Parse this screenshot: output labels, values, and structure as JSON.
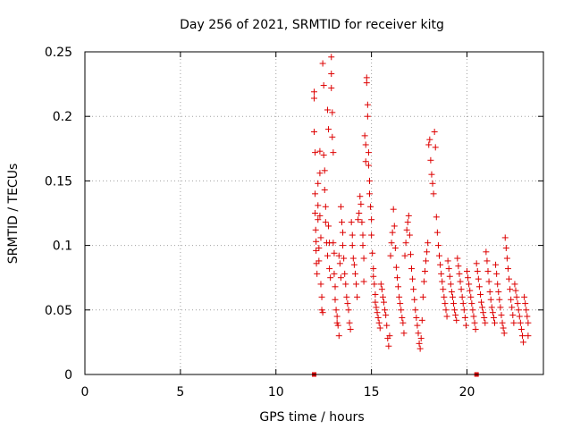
{
  "chart_data": {
    "type": "scatter",
    "title": "Day 256 of 2021, SRMTID for receiver kitg",
    "xlabel": "GPS time / hours",
    "ylabel": "SRMTID / TECUs",
    "xlim": [
      0,
      24
    ],
    "ylim": [
      0,
      0.25
    ],
    "xticks": [
      0,
      5,
      10,
      15,
      20
    ],
    "xtick_labels": [
      "0",
      "5",
      "10",
      "15",
      "20"
    ],
    "yticks": [
      0,
      0.05,
      0.1,
      0.15,
      0.2,
      0.25
    ],
    "ytick_labels": [
      "0",
      "0.05",
      "0.1",
      "0.15",
      "0.2",
      "0.25"
    ],
    "grid": true,
    "marker": "+",
    "color": "#dd0000",
    "axis_markers_x": [
      12.0,
      20.5
    ],
    "series": [
      {
        "name": "SRMTID",
        "points": [
          [
            12.0,
            0.219
          ],
          [
            12.0,
            0.214
          ],
          [
            12.0,
            0.188
          ],
          [
            12.05,
            0.172
          ],
          [
            12.05,
            0.14
          ],
          [
            12.05,
            0.125
          ],
          [
            12.08,
            0.112
          ],
          [
            12.1,
            0.103
          ],
          [
            12.1,
            0.096
          ],
          [
            12.12,
            0.086
          ],
          [
            12.15,
            0.078
          ],
          [
            12.2,
            0.148
          ],
          [
            12.2,
            0.131
          ],
          [
            12.2,
            0.12
          ],
          [
            12.25,
            0.098
          ],
          [
            12.25,
            0.088
          ],
          [
            12.3,
            0.173
          ],
          [
            12.3,
            0.156
          ],
          [
            12.3,
            0.123
          ],
          [
            12.35,
            0.106
          ],
          [
            12.35,
            0.07
          ],
          [
            12.4,
            0.06
          ],
          [
            12.4,
            0.05
          ],
          [
            12.45,
            0.048
          ],
          [
            12.45,
            0.241
          ],
          [
            12.5,
            0.224
          ],
          [
            12.5,
            0.17
          ],
          [
            12.55,
            0.158
          ],
          [
            12.55,
            0.143
          ],
          [
            12.6,
            0.13
          ],
          [
            12.6,
            0.118
          ],
          [
            12.65,
            0.102
          ],
          [
            12.7,
            0.092
          ],
          [
            12.7,
            0.205
          ],
          [
            12.75,
            0.19
          ],
          [
            12.75,
            0.115
          ],
          [
            12.8,
            0.102
          ],
          [
            12.8,
            0.082
          ],
          [
            12.85,
            0.075
          ],
          [
            12.9,
            0.246
          ],
          [
            12.9,
            0.233
          ],
          [
            12.9,
            0.222
          ],
          [
            12.95,
            0.203
          ],
          [
            12.95,
            0.184
          ],
          [
            13.0,
            0.172
          ],
          [
            13.0,
            0.102
          ],
          [
            13.05,
            0.094
          ],
          [
            13.05,
            0.078
          ],
          [
            13.1,
            0.068
          ],
          [
            13.1,
            0.058
          ],
          [
            13.15,
            0.05
          ],
          [
            13.2,
            0.045
          ],
          [
            13.2,
            0.04
          ],
          [
            13.25,
            0.038
          ],
          [
            13.3,
            0.03
          ],
          [
            13.3,
            0.092
          ],
          [
            13.35,
            0.086
          ],
          [
            13.4,
            0.075
          ],
          [
            13.4,
            0.13
          ],
          [
            13.45,
            0.118
          ],
          [
            13.5,
            0.11
          ],
          [
            13.5,
            0.1
          ],
          [
            13.55,
            0.09
          ],
          [
            13.6,
            0.078
          ],
          [
            13.65,
            0.07
          ],
          [
            13.7,
            0.06
          ],
          [
            13.75,
            0.055
          ],
          [
            13.8,
            0.05
          ],
          [
            13.85,
            0.04
          ],
          [
            13.9,
            0.035
          ],
          [
            13.95,
            0.118
          ],
          [
            14.0,
            0.108
          ],
          [
            14.0,
            0.1
          ],
          [
            14.05,
            0.09
          ],
          [
            14.1,
            0.085
          ],
          [
            14.15,
            0.078
          ],
          [
            14.2,
            0.07
          ],
          [
            14.25,
            0.06
          ],
          [
            14.3,
            0.12
          ],
          [
            14.35,
            0.125
          ],
          [
            14.4,
            0.138
          ],
          [
            14.45,
            0.132
          ],
          [
            14.5,
            0.118
          ],
          [
            14.55,
            0.108
          ],
          [
            14.55,
            0.1
          ],
          [
            14.6,
            0.09
          ],
          [
            14.6,
            0.072
          ],
          [
            14.65,
            0.185
          ],
          [
            14.7,
            0.178
          ],
          [
            14.7,
            0.165
          ],
          [
            14.75,
            0.23
          ],
          [
            14.75,
            0.226
          ],
          [
            14.8,
            0.209
          ],
          [
            14.8,
            0.2
          ],
          [
            14.85,
            0.172
          ],
          [
            14.85,
            0.162
          ],
          [
            14.9,
            0.15
          ],
          [
            14.9,
            0.14
          ],
          [
            14.95,
            0.13
          ],
          [
            15.0,
            0.12
          ],
          [
            15.0,
            0.108
          ],
          [
            15.05,
            0.094
          ],
          [
            15.1,
            0.082
          ],
          [
            15.1,
            0.076
          ],
          [
            15.15,
            0.07
          ],
          [
            15.2,
            0.062
          ],
          [
            15.2,
            0.056
          ],
          [
            15.25,
            0.052
          ],
          [
            15.3,
            0.048
          ],
          [
            15.35,
            0.044
          ],
          [
            15.4,
            0.04
          ],
          [
            15.45,
            0.036
          ],
          [
            15.5,
            0.07
          ],
          [
            15.55,
            0.066
          ],
          [
            15.6,
            0.06
          ],
          [
            15.65,
            0.056
          ],
          [
            15.7,
            0.05
          ],
          [
            15.75,
            0.046
          ],
          [
            15.8,
            0.038
          ],
          [
            15.85,
            0.028
          ],
          [
            15.9,
            0.022
          ],
          [
            15.95,
            0.03
          ],
          [
            16.0,
            0.092
          ],
          [
            16.05,
            0.102
          ],
          [
            16.1,
            0.11
          ],
          [
            16.15,
            0.128
          ],
          [
            16.2,
            0.115
          ],
          [
            16.25,
            0.098
          ],
          [
            16.3,
            0.083
          ],
          [
            16.35,
            0.075
          ],
          [
            16.4,
            0.068
          ],
          [
            16.45,
            0.06
          ],
          [
            16.5,
            0.055
          ],
          [
            16.55,
            0.05
          ],
          [
            16.6,
            0.044
          ],
          [
            16.65,
            0.04
          ],
          [
            16.7,
            0.032
          ],
          [
            16.75,
            0.092
          ],
          [
            16.8,
            0.102
          ],
          [
            16.85,
            0.112
          ],
          [
            16.9,
            0.118
          ],
          [
            16.95,
            0.123
          ],
          [
            17.0,
            0.108
          ],
          [
            17.05,
            0.093
          ],
          [
            17.1,
            0.082
          ],
          [
            17.15,
            0.074
          ],
          [
            17.2,
            0.066
          ],
          [
            17.25,
            0.058
          ],
          [
            17.3,
            0.05
          ],
          [
            17.35,
            0.044
          ],
          [
            17.4,
            0.038
          ],
          [
            17.45,
            0.032
          ],
          [
            17.5,
            0.024
          ],
          [
            17.55,
            0.02
          ],
          [
            17.6,
            0.028
          ],
          [
            17.65,
            0.042
          ],
          [
            17.7,
            0.06
          ],
          [
            17.75,
            0.072
          ],
          [
            17.8,
            0.08
          ],
          [
            17.85,
            0.088
          ],
          [
            17.9,
            0.095
          ],
          [
            17.95,
            0.102
          ],
          [
            18.0,
            0.178
          ],
          [
            18.05,
            0.182
          ],
          [
            18.1,
            0.166
          ],
          [
            18.15,
            0.155
          ],
          [
            18.2,
            0.148
          ],
          [
            18.25,
            0.14
          ],
          [
            18.3,
            0.188
          ],
          [
            18.35,
            0.176
          ],
          [
            18.4,
            0.122
          ],
          [
            18.45,
            0.11
          ],
          [
            18.5,
            0.1
          ],
          [
            18.55,
            0.092
          ],
          [
            18.6,
            0.085
          ],
          [
            18.65,
            0.078
          ],
          [
            18.7,
            0.072
          ],
          [
            18.75,
            0.066
          ],
          [
            18.8,
            0.06
          ],
          [
            18.85,
            0.055
          ],
          [
            18.9,
            0.05
          ],
          [
            18.95,
            0.045
          ],
          [
            19.0,
            0.088
          ],
          [
            19.05,
            0.082
          ],
          [
            19.1,
            0.076
          ],
          [
            19.15,
            0.07
          ],
          [
            19.2,
            0.064
          ],
          [
            19.25,
            0.06
          ],
          [
            19.3,
            0.055
          ],
          [
            19.35,
            0.05
          ],
          [
            19.4,
            0.046
          ],
          [
            19.45,
            0.042
          ],
          [
            19.5,
            0.09
          ],
          [
            19.55,
            0.084
          ],
          [
            19.6,
            0.078
          ],
          [
            19.65,
            0.072
          ],
          [
            19.7,
            0.066
          ],
          [
            19.75,
            0.06
          ],
          [
            19.8,
            0.055
          ],
          [
            19.85,
            0.05
          ],
          [
            19.9,
            0.044
          ],
          [
            19.95,
            0.038
          ],
          [
            20.0,
            0.08
          ],
          [
            20.05,
            0.075
          ],
          [
            20.1,
            0.07
          ],
          [
            20.15,
            0.065
          ],
          [
            20.2,
            0.06
          ],
          [
            20.25,
            0.055
          ],
          [
            20.3,
            0.05
          ],
          [
            20.35,
            0.045
          ],
          [
            20.4,
            0.04
          ],
          [
            20.45,
            0.035
          ],
          [
            20.5,
            0.086
          ],
          [
            20.55,
            0.08
          ],
          [
            20.6,
            0.074
          ],
          [
            20.65,
            0.068
          ],
          [
            20.7,
            0.062
          ],
          [
            20.75,
            0.056
          ],
          [
            20.8,
            0.052
          ],
          [
            20.85,
            0.048
          ],
          [
            20.9,
            0.044
          ],
          [
            20.95,
            0.04
          ],
          [
            21.0,
            0.095
          ],
          [
            21.05,
            0.088
          ],
          [
            21.1,
            0.08
          ],
          [
            21.15,
            0.072
          ],
          [
            21.2,
            0.064
          ],
          [
            21.25,
            0.058
          ],
          [
            21.3,
            0.052
          ],
          [
            21.35,
            0.048
          ],
          [
            21.4,
            0.044
          ],
          [
            21.45,
            0.04
          ],
          [
            21.5,
            0.085
          ],
          [
            21.55,
            0.078
          ],
          [
            21.6,
            0.07
          ],
          [
            21.65,
            0.064
          ],
          [
            21.7,
            0.058
          ],
          [
            21.75,
            0.052
          ],
          [
            21.8,
            0.046
          ],
          [
            21.85,
            0.04
          ],
          [
            21.9,
            0.036
          ],
          [
            21.95,
            0.032
          ],
          [
            22.0,
            0.106
          ],
          [
            22.05,
            0.098
          ],
          [
            22.1,
            0.09
          ],
          [
            22.15,
            0.082
          ],
          [
            22.2,
            0.074
          ],
          [
            22.25,
            0.066
          ],
          [
            22.3,
            0.058
          ],
          [
            22.35,
            0.052
          ],
          [
            22.4,
            0.046
          ],
          [
            22.45,
            0.04
          ],
          [
            22.5,
            0.07
          ],
          [
            22.55,
            0.065
          ],
          [
            22.6,
            0.06
          ],
          [
            22.65,
            0.055
          ],
          [
            22.7,
            0.05
          ],
          [
            22.75,
            0.045
          ],
          [
            22.8,
            0.04
          ],
          [
            22.85,
            0.035
          ],
          [
            22.9,
            0.03
          ],
          [
            22.95,
            0.025
          ],
          [
            23.0,
            0.06
          ],
          [
            23.05,
            0.055
          ],
          [
            23.1,
            0.05
          ],
          [
            23.15,
            0.045
          ],
          [
            23.2,
            0.04
          ],
          [
            23.2,
            0.03
          ]
        ]
      }
    ]
  }
}
